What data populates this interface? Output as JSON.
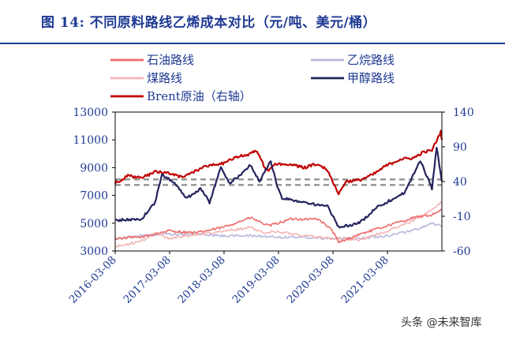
{
  "header": {
    "title": "图 14:  不同原料路线乙烯成本对比（元/吨、美元/桶）"
  },
  "chart_data": {
    "type": "line",
    "title": "图 14:  不同原料路线乙烯成本对比（元/吨、美元/桶）",
    "y_left": {
      "range": [
        3000,
        13000
      ],
      "ticks": [
        "3000",
        "5000",
        "7000",
        "9000",
        "11000",
        "13000"
      ]
    },
    "y_right": {
      "range": [
        -60,
        140
      ],
      "ticks": [
        "-60",
        "-10",
        "40",
        "90",
        "140"
      ]
    },
    "x": {
      "range": [
        "2016-03-08",
        "2022-03-08"
      ],
      "ticks": [
        "2016-03-08",
        "2017-03-08",
        "2018-03-08",
        "2019-03-08",
        "2020-03-08",
        "2021-03-08"
      ]
    },
    "grid": false,
    "legend_position": "top",
    "reference_lines": [
      {
        "axis": "left",
        "value": 8150,
        "style": "dashed"
      },
      {
        "axis": "left",
        "value": 7750,
        "style": "dashed"
      }
    ],
    "series": [
      {
        "name": "石油路线",
        "axis": "left",
        "color": "#ee6a6a",
        "points": [
          [
            "2016-03-08",
            3900
          ],
          [
            "2016-09-01",
            4000
          ],
          [
            "2017-03-01",
            4450
          ],
          [
            "2017-09-01",
            4300
          ],
          [
            "2018-03-01",
            4700
          ],
          [
            "2018-09-01",
            5400
          ],
          [
            "2019-01-01",
            4800
          ],
          [
            "2019-06-01",
            5300
          ],
          [
            "2019-12-01",
            5300
          ],
          [
            "2020-03-01",
            4500
          ],
          [
            "2020-04-15",
            3600
          ],
          [
            "2020-09-01",
            4200
          ],
          [
            "2021-03-01",
            4800
          ],
          [
            "2021-09-01",
            5400
          ],
          [
            "2022-01-01",
            5600
          ],
          [
            "2022-03-08",
            6000
          ]
        ]
      },
      {
        "name": "乙烷路线",
        "axis": "left",
        "color": "#b8b8de",
        "points": [
          [
            "2016-03-08",
            3900
          ],
          [
            "2016-09-01",
            4100
          ],
          [
            "2017-03-01",
            4200
          ],
          [
            "2017-09-01",
            4200
          ],
          [
            "2018-03-01",
            4100
          ],
          [
            "2018-09-01",
            4100
          ],
          [
            "2019-03-01",
            4000
          ],
          [
            "2019-09-01",
            4000
          ],
          [
            "2020-03-01",
            3900
          ],
          [
            "2020-09-01",
            3900
          ],
          [
            "2021-03-01",
            4100
          ],
          [
            "2021-09-01",
            4500
          ],
          [
            "2022-01-01",
            5000
          ],
          [
            "2022-03-08",
            4800
          ]
        ]
      },
      {
        "name": "煤路线",
        "axis": "left",
        "color": "#f4b4b4",
        "points": [
          [
            "2016-03-08",
            3300
          ],
          [
            "2016-09-01",
            3700
          ],
          [
            "2016-12-01",
            4300
          ],
          [
            "2017-03-01",
            3900
          ],
          [
            "2017-09-01",
            4200
          ],
          [
            "2018-03-01",
            4400
          ],
          [
            "2018-09-01",
            4700
          ],
          [
            "2018-12-01",
            4300
          ],
          [
            "2019-03-01",
            4400
          ],
          [
            "2019-09-01",
            4100
          ],
          [
            "2020-03-01",
            3900
          ],
          [
            "2020-09-01",
            3800
          ],
          [
            "2021-03-01",
            4400
          ],
          [
            "2021-09-01",
            5200
          ],
          [
            "2022-01-01",
            6000
          ],
          [
            "2022-03-08",
            6500
          ]
        ]
      },
      {
        "name": "甲醇路线",
        "axis": "left",
        "color": "#24245e",
        "points": [
          [
            "2016-03-08",
            5200
          ],
          [
            "2016-09-01",
            5300
          ],
          [
            "2016-12-01",
            6500
          ],
          [
            "2017-01-15",
            8500
          ],
          [
            "2017-04-01",
            8000
          ],
          [
            "2017-07-01",
            6800
          ],
          [
            "2017-10-01",
            7500
          ],
          [
            "2017-12-01",
            6500
          ],
          [
            "2018-01-15",
            8000
          ],
          [
            "2018-02-15",
            9000
          ],
          [
            "2018-04-15",
            7900
          ],
          [
            "2018-07-01",
            8500
          ],
          [
            "2018-09-01",
            9200
          ],
          [
            "2018-11-01",
            8000
          ],
          [
            "2019-01-15",
            9500
          ],
          [
            "2019-03-01",
            7600
          ],
          [
            "2019-04-01",
            6800
          ],
          [
            "2019-09-01",
            6500
          ],
          [
            "2019-12-01",
            6300
          ],
          [
            "2020-02-01",
            6200
          ],
          [
            "2020-04-15",
            4700
          ],
          [
            "2020-09-01",
            5000
          ],
          [
            "2021-01-01",
            6200
          ],
          [
            "2021-03-01",
            6500
          ],
          [
            "2021-07-01",
            7200
          ],
          [
            "2021-10-15",
            9500
          ],
          [
            "2022-01-01",
            7500
          ],
          [
            "2022-02-01",
            10500
          ],
          [
            "2022-03-08",
            8000
          ]
        ]
      },
      {
        "name": "Brent原油（右轴）",
        "axis": "right",
        "color": "#c00000",
        "points": [
          [
            "2016-03-08",
            38
          ],
          [
            "2016-06-01",
            48
          ],
          [
            "2016-09-01",
            45
          ],
          [
            "2016-12-01",
            54
          ],
          [
            "2017-03-01",
            52
          ],
          [
            "2017-06-01",
            46
          ],
          [
            "2017-09-01",
            56
          ],
          [
            "2017-12-01",
            64
          ],
          [
            "2018-03-01",
            66
          ],
          [
            "2018-06-01",
            75
          ],
          [
            "2018-09-01",
            80
          ],
          [
            "2018-10-15",
            85
          ],
          [
            "2018-12-15",
            55
          ],
          [
            "2019-03-01",
            66
          ],
          [
            "2019-06-01",
            64
          ],
          [
            "2019-09-01",
            60
          ],
          [
            "2019-12-01",
            66
          ],
          [
            "2020-02-01",
            56
          ],
          [
            "2020-04-15",
            22
          ],
          [
            "2020-06-01",
            40
          ],
          [
            "2020-09-01",
            42
          ],
          [
            "2020-12-01",
            50
          ],
          [
            "2021-03-01",
            63
          ],
          [
            "2021-06-01",
            72
          ],
          [
            "2021-09-01",
            74
          ],
          [
            "2021-11-01",
            82
          ],
          [
            "2022-01-01",
            85
          ],
          [
            "2022-03-01",
            112
          ],
          [
            "2022-03-08",
            100
          ]
        ]
      }
    ]
  },
  "watermark": {
    "text": "头条 @未来智库"
  }
}
